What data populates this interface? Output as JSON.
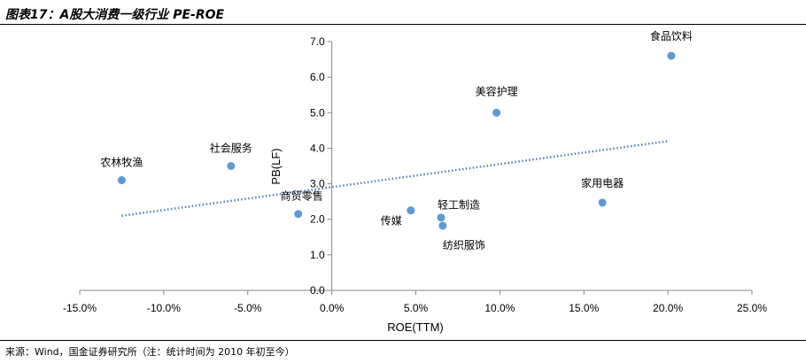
{
  "header": {
    "title": "图表17：A股大消费一级行业 PE-ROE"
  },
  "footer": {
    "source": "来源：Wind，国金证券研究所（注：统计时间为 2010 年初至今）"
  },
  "chart_data": {
    "type": "scatter",
    "xlabel": "ROE(TTM)",
    "ylabel": "PB(LF)",
    "xlim": [
      -0.15,
      0.25
    ],
    "ylim": [
      0,
      7
    ],
    "x_ticks": [
      "-15.0%",
      "-10.0%",
      "-5.0%",
      "0.0%",
      "5.0%",
      "10.0%",
      "15.0%",
      "20.0%",
      "25.0%"
    ],
    "x_tick_values": [
      -0.15,
      -0.1,
      -0.05,
      0,
      0.05,
      0.1,
      0.15,
      0.2,
      0.25
    ],
    "y_ticks": [
      "0.0",
      "1.0",
      "2.0",
      "3.0",
      "4.0",
      "5.0",
      "6.0",
      "7.0"
    ],
    "y_tick_values": [
      0,
      1,
      2,
      3,
      4,
      5,
      6,
      7
    ],
    "grid": false,
    "marker_color": "#5B9BD5",
    "trendline": {
      "style": "dotted",
      "color": "#4F81BD",
      "from": [
        -0.125,
        2.1
      ],
      "to": [
        0.2,
        4.2
      ]
    },
    "points": [
      {
        "label": "农林牧渔",
        "x": -0.125,
        "y": 3.1
      },
      {
        "label": "社会服务",
        "x": -0.06,
        "y": 3.5
      },
      {
        "label": "商贸零售",
        "x": -0.02,
        "y": 2.15
      },
      {
        "label": "传媒",
        "x": 0.047,
        "y": 2.25
      },
      {
        "label": "轻工制造",
        "x": 0.065,
        "y": 2.05
      },
      {
        "label": "纺织服饰",
        "x": 0.066,
        "y": 1.82
      },
      {
        "label": "美容护理",
        "x": 0.098,
        "y": 5.0
      },
      {
        "label": "家用电器",
        "x": 0.161,
        "y": 2.47
      },
      {
        "label": "食品饮料",
        "x": 0.202,
        "y": 6.6
      }
    ]
  }
}
